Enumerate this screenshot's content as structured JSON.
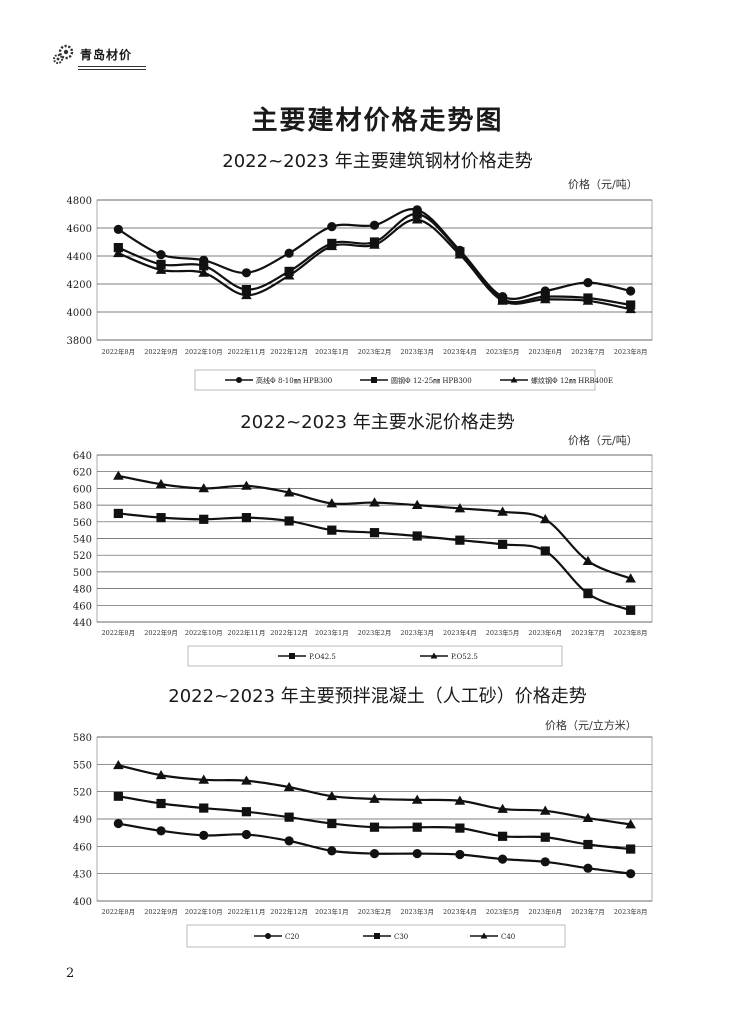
{
  "header": {
    "brand": "青岛材价",
    "logo_icon": "gear-icon"
  },
  "page_title": "主要建材价格走势图",
  "page_number": "2",
  "chart_data": [
    {
      "type": "line",
      "title": "2022~2023 年主要建筑钢材价格走势",
      "unit": "价格（元/吨）",
      "categories": [
        "2022年8月",
        "2022年9月",
        "2022年10月",
        "2022年11月",
        "2022年12月",
        "2023年1月",
        "2023年2月",
        "2023年3月",
        "2023年4月",
        "2023年5月",
        "2023年6月",
        "2023年7月",
        "2023年8月"
      ],
      "ylim": [
        3800,
        4800
      ],
      "yticks": [
        3800,
        4000,
        4200,
        4400,
        4600,
        4800
      ],
      "grid": true,
      "legend_position": "bottom",
      "series": [
        {
          "name": "高线Φ 8-10㎜ HPB300",
          "marker": "circle",
          "values": [
            4590,
            4410,
            4370,
            4280,
            4420,
            4610,
            4620,
            4730,
            4440,
            4110,
            4150,
            4210,
            4150
          ]
        },
        {
          "name": "圆钢Φ 12-25㎜ HPB300",
          "marker": "square",
          "values": [
            4460,
            4340,
            4330,
            4160,
            4290,
            4490,
            4500,
            4700,
            4430,
            4090,
            4110,
            4100,
            4050
          ]
        },
        {
          "name": "螺纹钢Φ 12㎜ HRB400E",
          "marker": "triangle",
          "values": [
            4420,
            4300,
            4280,
            4120,
            4260,
            4470,
            4480,
            4660,
            4410,
            4080,
            4090,
            4080,
            4020
          ]
        }
      ]
    },
    {
      "type": "line",
      "title": "2022~2023 年主要水泥价格走势",
      "unit": "价格（元/吨）",
      "categories": [
        "2022年8月",
        "2022年9月",
        "2022年10月",
        "2022年11月",
        "2022年12月",
        "2023年1月",
        "2023年2月",
        "2023年3月",
        "2023年4月",
        "2023年5月",
        "2023年6月",
        "2023年7月",
        "2023年8月"
      ],
      "ylim": [
        440,
        640
      ],
      "yticks": [
        440,
        460,
        480,
        500,
        520,
        540,
        560,
        580,
        600,
        620,
        640
      ],
      "grid": true,
      "legend_position": "bottom",
      "series": [
        {
          "name": "P.O42.5",
          "marker": "square",
          "values": [
            570,
            565,
            563,
            565,
            561,
            550,
            547,
            543,
            538,
            533,
            525,
            474,
            454
          ]
        },
        {
          "name": "P.O52.5",
          "marker": "triangle",
          "values": [
            615,
            605,
            600,
            603,
            595,
            582,
            583,
            580,
            576,
            572,
            563,
            513,
            492
          ]
        }
      ]
    },
    {
      "type": "line",
      "title": "2022~2023 年主要预拌混凝土（人工砂）价格走势",
      "unit": "价格（元/立方米）",
      "categories": [
        "2022年8月",
        "2022年9月",
        "2022年10月",
        "2022年11月",
        "2022年12月",
        "2023年1月",
        "2023年2月",
        "2023年3月",
        "2023年4月",
        "2023年5月",
        "2023年6月",
        "2023年7月",
        "2023年8月"
      ],
      "ylim": [
        400,
        580
      ],
      "yticks": [
        400,
        430,
        460,
        490,
        520,
        550,
        580
      ],
      "grid": true,
      "legend_position": "bottom",
      "series": [
        {
          "name": "C20",
          "marker": "circle",
          "values": [
            485,
            477,
            472,
            473,
            466,
            455,
            452,
            452,
            451,
            446,
            443,
            436,
            430
          ]
        },
        {
          "name": "C30",
          "marker": "square",
          "values": [
            515,
            507,
            502,
            498,
            492,
            485,
            481,
            481,
            480,
            471,
            470,
            462,
            457
          ]
        },
        {
          "name": "C40",
          "marker": "triangle",
          "values": [
            549,
            538,
            533,
            532,
            525,
            515,
            512,
            511,
            510,
            501,
            499,
            491,
            484
          ]
        }
      ]
    }
  ]
}
